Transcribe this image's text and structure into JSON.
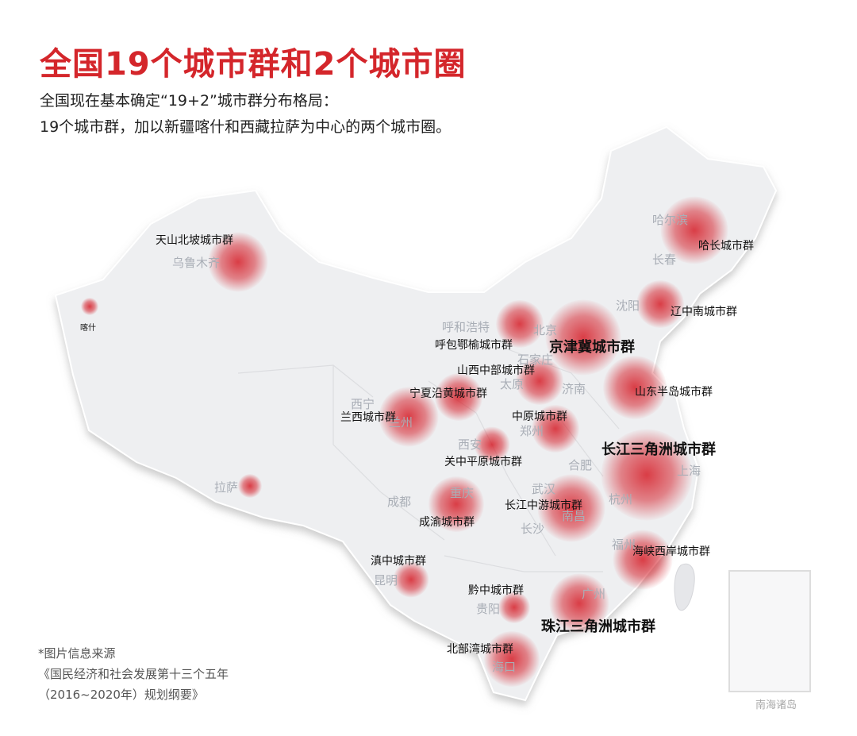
{
  "title": "全国19个城市群和2个城市圈",
  "subtitle": [
    "全国现在基本确定“19+2”城市群分布格局：",
    "19个城市群，加以新疆喀什和西藏拉萨为中心的两个城市圈。"
  ],
  "clusters": [
    "天山北坡城市群",
    "呼包鄂榆城市群",
    "京津冀城市群",
    "哈长城市群",
    "辽中南城市群",
    "山西中部城市群",
    "宁夏沿黄城市群",
    "山东半岛城市群",
    "兰西城市群",
    "中原城市群",
    "长江三角洲城市群",
    "关中平原城市群",
    "成渝城市群",
    "长江中游城市群",
    "海峡西岸城市群",
    "滇中城市群",
    "黔中城市群",
    "珠江三角洲城市群",
    "北部湾城市群"
  ],
  "circles": [
    "喀什",
    "拉萨"
  ],
  "cities": [
    "乌鲁木齐",
    "哈尔滨",
    "长春",
    "沈阳",
    "呼和浩特",
    "北京",
    "石家庄",
    "太原",
    "济南",
    "西宁",
    "兰州",
    "西安",
    "郑州",
    "合肥",
    "上海",
    "武汉",
    "杭州",
    "南昌",
    "长沙",
    "成都",
    "重庆",
    "福州",
    "广州",
    "贵阳",
    "昆明",
    "海口"
  ],
  "source": [
    "*图片信息来源",
    "《国民经济和社会发展第十三个五年",
    "（2016~2020年）规划纲要》"
  ],
  "inset_label": "南海诸岛",
  "colors": {
    "title": "#d4262b",
    "highlight": "#d61e28",
    "map_fill": "#eeeff1"
  }
}
